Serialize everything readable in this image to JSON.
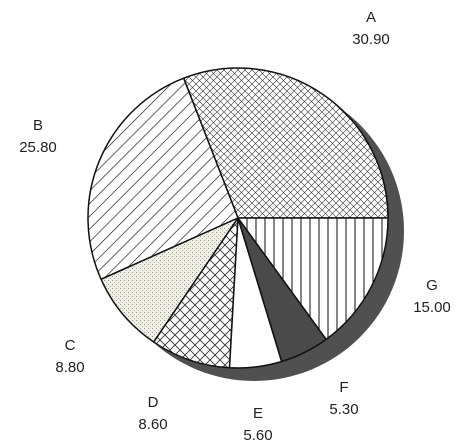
{
  "chart_data": {
    "type": "pie",
    "slices": [
      {
        "name": "A",
        "value": 30.9,
        "value_label": "30.90",
        "pattern": "crosshatch-fine"
      },
      {
        "name": "B",
        "value": 25.8,
        "value_label": "25.80",
        "pattern": "diagonal"
      },
      {
        "name": "C",
        "value": 8.8,
        "value_label": "8.80",
        "pattern": "stipple"
      },
      {
        "name": "D",
        "value": 8.6,
        "value_label": "8.60",
        "pattern": "crosshatch-coarse"
      },
      {
        "name": "E",
        "value": 5.6,
        "value_label": "5.60",
        "pattern": "solid-white"
      },
      {
        "name": "F",
        "value": 5.3,
        "value_label": "5.30",
        "pattern": "solid-dark"
      },
      {
        "name": "G",
        "value": 15.0,
        "value_label": "15.00",
        "pattern": "vertical-lines"
      }
    ],
    "start_direction": "east",
    "order": "counterclockwise",
    "style": "3d-shadow",
    "title": "",
    "legend": "none"
  }
}
